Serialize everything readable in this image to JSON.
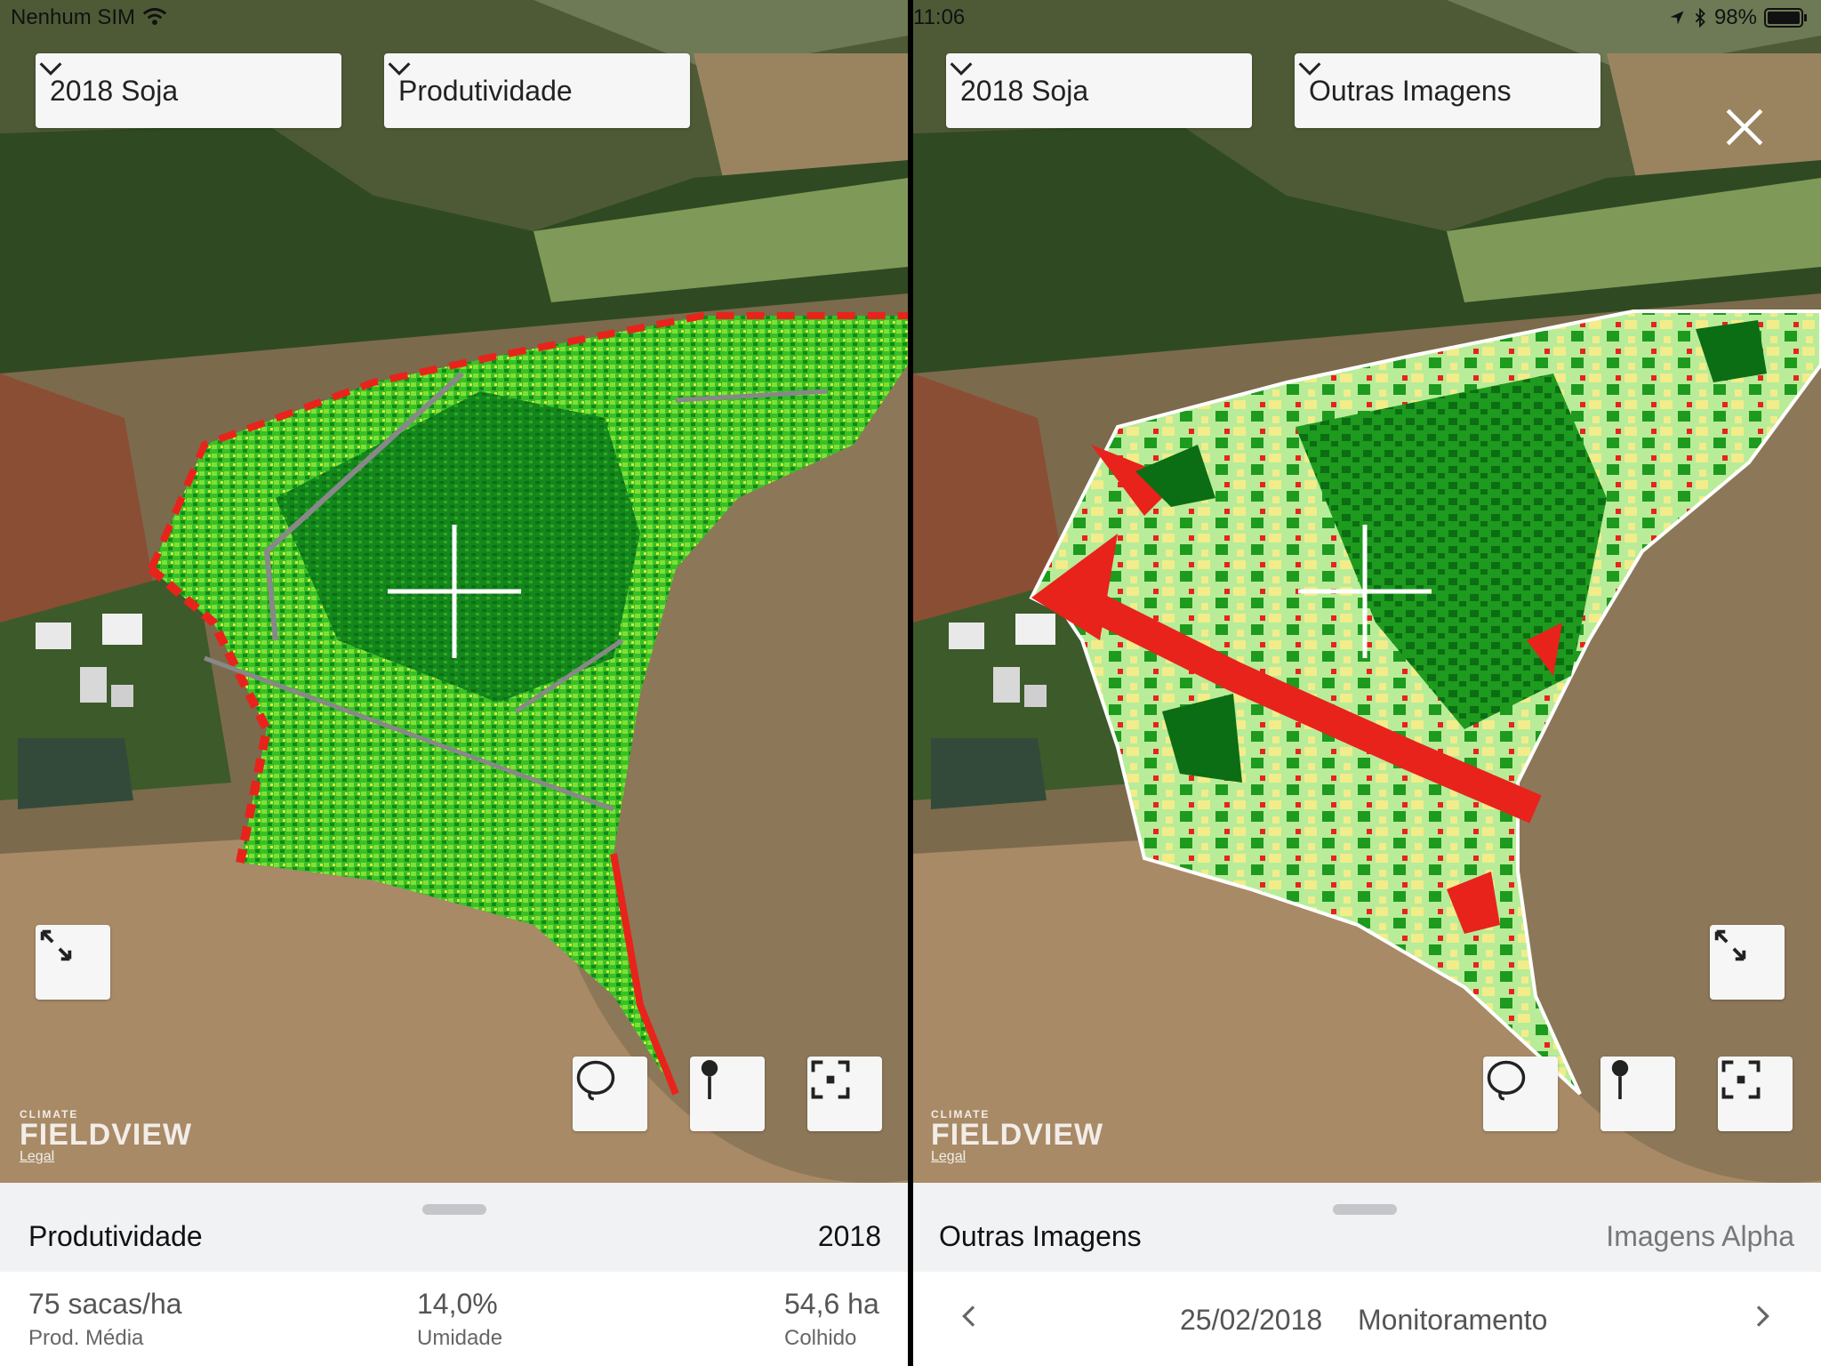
{
  "status_bar": {
    "carrier": "Nenhum SIM",
    "time": "11:06",
    "battery": "98%"
  },
  "left": {
    "season_dropdown": "2018 Soja",
    "layer_dropdown": "Produtividade",
    "logo_small": "CLIMATE",
    "logo_big": "FIELDVIEW",
    "legal": "Legal",
    "sheet": {
      "title": "Produtividade",
      "year": "2018",
      "stats": [
        {
          "value": "75 sacas/ha",
          "label": "Prod. Média"
        },
        {
          "value": "14,0%",
          "label": "Umidade"
        },
        {
          "value": "54,6 ha",
          "label": "Colhido"
        }
      ]
    }
  },
  "right": {
    "season_dropdown": "2018 Soja",
    "layer_dropdown": "Outras Imagens",
    "logo_small": "CLIMATE",
    "logo_big": "FIELDVIEW",
    "legal": "Legal",
    "sheet": {
      "title": "Outras Imagens",
      "source": "Imagens Alpha",
      "date": "25/02/2018",
      "type": "Monitoramento"
    }
  },
  "colors": {
    "high": "#1e9a1e",
    "very_high": "#0b6e14",
    "mid_green": "#7fe03a",
    "light_green": "#b8ec98",
    "low": "#e8231b",
    "medium": "#f3ec8a"
  },
  "icons": [
    "wifi-icon",
    "location-arrow-icon",
    "bluetooth-icon",
    "battery-icon",
    "chevron-down-icon",
    "expand-icon",
    "lasso-icon",
    "pin-icon",
    "focus-icon",
    "close-icon",
    "chevron-left-icon",
    "chevron-right-icon",
    "crosshair-icon"
  ]
}
